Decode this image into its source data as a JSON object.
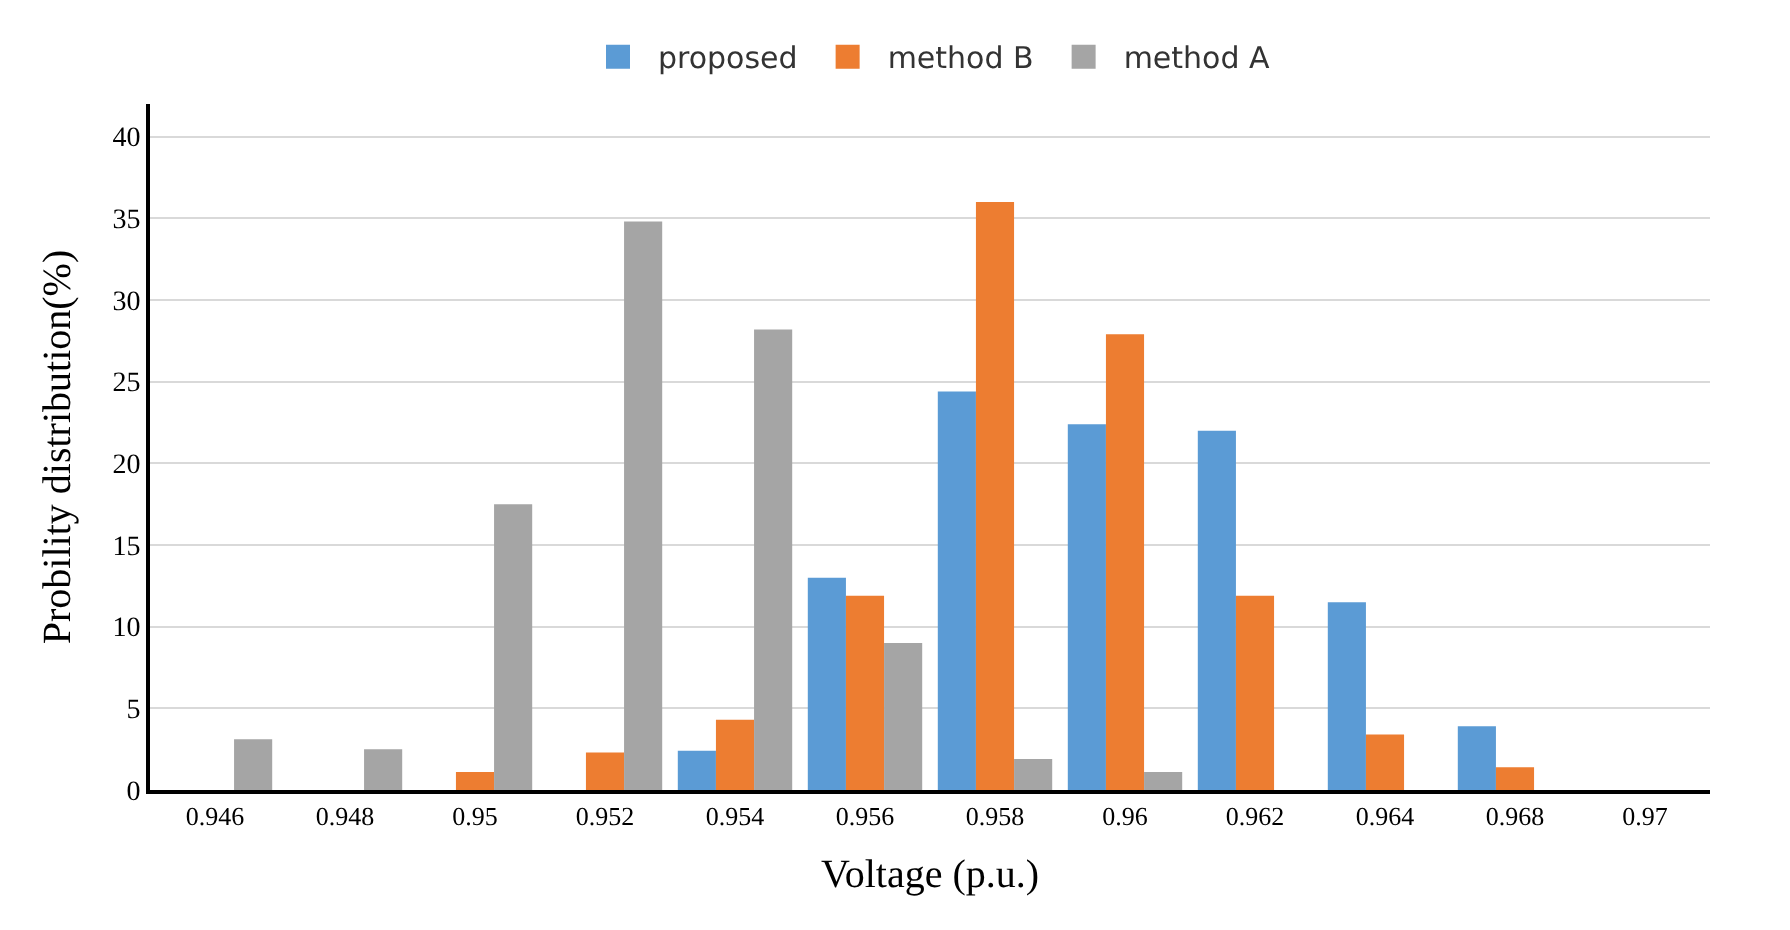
{
  "chart_data": {
    "type": "bar",
    "xlabel": "Voltage (p.u.)",
    "ylabel": "Probility distribution(%)",
    "categories": [
      "0.946",
      "0.948",
      "0.95",
      "0.952",
      "0.954",
      "0.956",
      "0.958",
      "0.96",
      "0.962",
      "0.964",
      "0.968",
      "0.97"
    ],
    "series": [
      {
        "name": "proposed",
        "color": "#5b9bd5",
        "values": [
          null,
          null,
          null,
          null,
          2.4,
          13.0,
          24.4,
          22.4,
          22.0,
          11.5,
          3.9,
          null
        ]
      },
      {
        "name": "method B",
        "color": "#ed7d31",
        "values": [
          null,
          null,
          1.1,
          2.3,
          4.3,
          11.9,
          36.0,
          27.9,
          11.9,
          3.4,
          1.4,
          null
        ]
      },
      {
        "name": "method A",
        "color": "#a5a5a5",
        "values": [
          3.1,
          2.5,
          17.5,
          34.8,
          28.2,
          9.0,
          1.9,
          1.1,
          null,
          null,
          null,
          null
        ]
      }
    ],
    "ylim": [
      0,
      42
    ],
    "yticks": [
      0,
      5,
      10,
      15,
      20,
      25,
      30,
      35,
      40
    ],
    "grid": "y",
    "legend": "top"
  }
}
